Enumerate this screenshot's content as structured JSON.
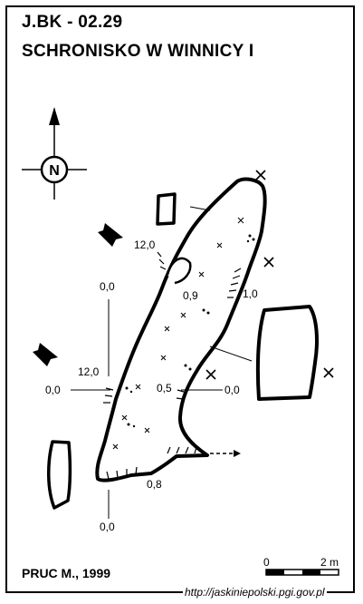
{
  "header": {
    "cave_code": "J.BK - 02.29",
    "cave_name": "SCHRONISKO W WINNICY I"
  },
  "north_arrow": {
    "letter": "N",
    "icon": "north-arrow-icon"
  },
  "labels": {
    "entrance_upper_height": "12,0",
    "entrance_lower_height": "12,0",
    "height_upper_inner": "0,9",
    "height_upper_right": "1,0",
    "height_middle": "0,5",
    "height_bottom": "0,8",
    "datum_upper": "0,0",
    "datum_left": "0,0",
    "datum_right": "0,0",
    "datum_bottom": "0,0"
  },
  "scale_bar": {
    "start_label": "0",
    "end_label": "2 m"
  },
  "footer": {
    "author": "PRUC M., 1999",
    "source_url": "http://jaskiniepolski.pgi.gov.pl"
  },
  "colors": {
    "ink": "#000000",
    "paper": "#ffffff"
  }
}
